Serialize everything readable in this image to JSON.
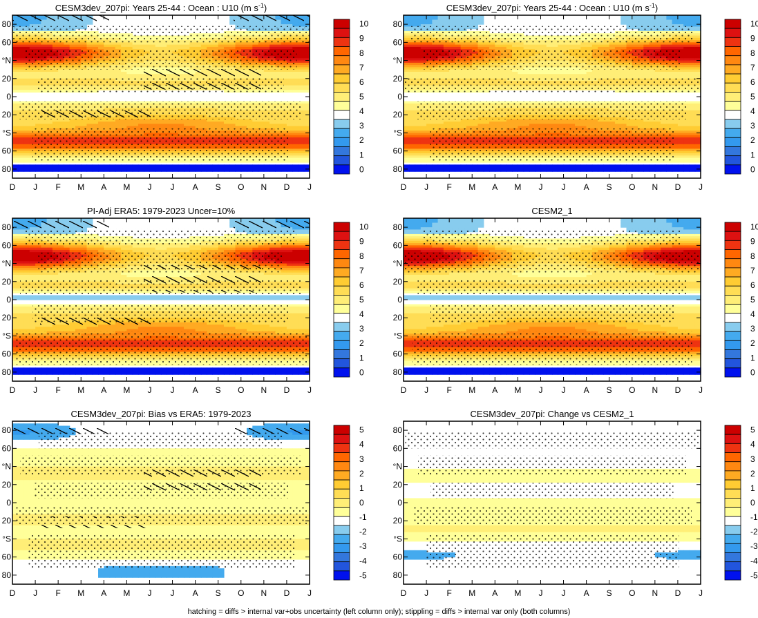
{
  "caption": "hatching = diffs > internal var+obs uncertainty (left column only); stippling = diffs > internal var only (both columns)",
  "colors": {
    "bias_colors": [
      "#0011ee",
      "#2255dd",
      "#3377dd",
      "#3399ee",
      "#44aaee",
      "#88ccee",
      "#ffffff",
      "#ffff99",
      "#ffee77",
      "#ffdd55",
      "#ffcc33",
      "#ffaa22",
      "#ff8811",
      "#ff6600",
      "#ee3311",
      "#dd1111",
      "#cc0000"
    ],
    "abs_colors": [
      "#0011ee",
      "#2255dd",
      "#3377dd",
      "#3399ee",
      "#44aaee",
      "#88ccee",
      "#ffffff",
      "#ffff99",
      "#ffee77",
      "#ffdd55",
      "#ffcc33",
      "#ffaa22",
      "#ff8811",
      "#ff6600",
      "#ee3311",
      "#dd1111",
      "#cc0000"
    ]
  },
  "chart_data": [
    {
      "type": "heatmap",
      "title": "CESM3dev_207pi: Years 25-44 : Ocean : U10 (m s⁻¹)",
      "title_main": "CESM3dev_207pi: Years 25-44 : Ocean : U10 (m s",
      "title_sup": "-1",
      "title_end": ")",
      "xticks": [
        "D",
        "J",
        "F",
        "M",
        "A",
        "M",
        "J",
        "J",
        "A",
        "S",
        "O",
        "N",
        "D",
        "J"
      ],
      "yticks": [
        "80",
        "60",
        "°N",
        "20",
        "0",
        "20",
        "°S",
        "60",
        "80"
      ],
      "ylim": [
        -90,
        90
      ],
      "colorbar": [
        "10",
        "9",
        "8",
        "7",
        "6",
        "5",
        "4",
        "3",
        "2",
        "1",
        "0"
      ],
      "field": "abs",
      "variant": 0,
      "hatch": true
    },
    {
      "type": "heatmap",
      "title": "CESM3dev_207pi: Years 25-44 : Ocean : U10 (m s⁻¹)",
      "title_main": "CESM3dev_207pi: Years 25-44 : Ocean : U10 (m s",
      "title_sup": "-1",
      "title_end": ")",
      "xticks": [
        "D",
        "J",
        "F",
        "M",
        "A",
        "M",
        "J",
        "J",
        "A",
        "S",
        "O",
        "N",
        "D",
        "J"
      ],
      "yticks": [
        "80",
        "60",
        "°N",
        "20",
        "0",
        "20",
        "°S",
        "60",
        "80"
      ],
      "ylim": [
        -90,
        90
      ],
      "colorbar": [
        "10",
        "9",
        "8",
        "7",
        "6",
        "5",
        "4",
        "3",
        "2",
        "1",
        "0"
      ],
      "field": "abs",
      "variant": 0,
      "hatch": false
    },
    {
      "type": "heatmap",
      "title": "PI-Adj ERA5: 1979-2023 Uncer=10%",
      "title_main": "PI-Adj ERA5: 1979-2023 Uncer=10%",
      "title_sup": "",
      "title_end": "",
      "xticks": [
        "D",
        "J",
        "F",
        "M",
        "A",
        "M",
        "J",
        "J",
        "A",
        "S",
        "O",
        "N",
        "D",
        "J"
      ],
      "yticks": [
        "80",
        "60",
        "°N",
        "20",
        "0",
        "20",
        "°S",
        "60",
        "80"
      ],
      "ylim": [
        -90,
        90
      ],
      "colorbar": [
        "10",
        "9",
        "8",
        "7",
        "6",
        "5",
        "4",
        "3",
        "2",
        "1",
        "0"
      ],
      "field": "abs",
      "variant": 1,
      "hatch": true
    },
    {
      "type": "heatmap",
      "title": "CESM2_1",
      "title_main": "CESM2_1",
      "title_sup": "",
      "title_end": "",
      "xticks": [
        "D",
        "J",
        "F",
        "M",
        "A",
        "M",
        "J",
        "J",
        "A",
        "S",
        "O",
        "N",
        "D",
        "J"
      ],
      "yticks": [
        "80",
        "60",
        "°N",
        "20",
        "0",
        "20",
        "°S",
        "60",
        "80"
      ],
      "ylim": [
        -90,
        90
      ],
      "colorbar": [
        "10",
        "9",
        "8",
        "7",
        "6",
        "5",
        "4",
        "3",
        "2",
        "1",
        "0"
      ],
      "field": "abs",
      "variant": 1,
      "hatch": false
    },
    {
      "type": "heatmap",
      "title": "CESM3dev_207pi: Bias vs ERA5: 1979-2023",
      "title_main": "CESM3dev_207pi: Bias vs ERA5: 1979-2023",
      "title_sup": "",
      "title_end": "",
      "xticks": [
        "D",
        "J",
        "F",
        "M",
        "A",
        "M",
        "J",
        "J",
        "A",
        "S",
        "O",
        "N",
        "D",
        "J"
      ],
      "yticks": [
        "80",
        "60",
        "°N",
        "20",
        "0",
        "20",
        "°S",
        "60",
        "80"
      ],
      "ylim": [
        -90,
        90
      ],
      "colorbar": [
        "5",
        "4",
        "3",
        "2",
        "1",
        "0",
        "-1",
        "-2",
        "-3",
        "-4",
        "-5"
      ],
      "field": "bias",
      "variant": 0,
      "hatch": true
    },
    {
      "type": "heatmap",
      "title": "CESM3dev_207pi: Change vs CESM2_1",
      "title_main": "CESM3dev_207pi: Change vs CESM2_1",
      "title_sup": "",
      "title_end": "",
      "xticks": [
        "D",
        "J",
        "F",
        "M",
        "A",
        "M",
        "J",
        "J",
        "A",
        "S",
        "O",
        "N",
        "D",
        "J"
      ],
      "yticks": [
        "80",
        "60",
        "°N",
        "20",
        "0",
        "20",
        "°S",
        "60",
        "80"
      ],
      "ylim": [
        -90,
        90
      ],
      "colorbar": [
        "5",
        "4",
        "3",
        "2",
        "1",
        "0",
        "-1",
        "-2",
        "-3",
        "-4",
        "-5"
      ],
      "field": "change",
      "variant": 0,
      "hatch": false
    }
  ]
}
